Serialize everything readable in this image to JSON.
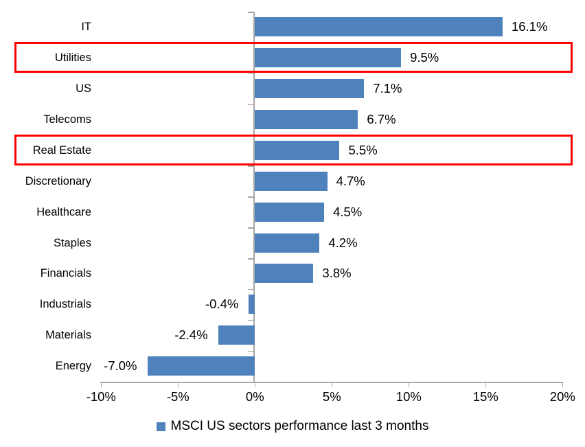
{
  "chart_data": {
    "type": "bar",
    "orientation": "horizontal",
    "categories": [
      "IT",
      "Utilities",
      "US",
      "Telecoms",
      "Real Estate",
      "Discretionary",
      "Healthcare",
      "Staples",
      "Financials",
      "Industrials",
      "Materials",
      "Energy"
    ],
    "values": [
      16.1,
      9.5,
      7.1,
      6.7,
      5.5,
      4.7,
      4.5,
      4.2,
      3.8,
      -0.4,
      -2.4,
      -7.0
    ],
    "value_labels": [
      "16.1%",
      "9.5%",
      "7.1%",
      "6.7%",
      "5.5%",
      "4.7%",
      "4.5%",
      "4.2%",
      "3.8%",
      "-0.4%",
      "-2.4%",
      "-7.0%"
    ],
    "xlim": [
      -10,
      20
    ],
    "x_ticks": [
      -10,
      -5,
      0,
      5,
      10,
      15,
      20
    ],
    "x_tick_labels": [
      "-10%",
      "-5%",
      "0%",
      "5%",
      "10%",
      "15%",
      "20%"
    ],
    "grid": false,
    "bar_color": "#4F81BD",
    "axis_color": "#A6A6A6",
    "highlight_color": "#FF0000",
    "highlighted_categories": [
      "Utilities",
      "Real Estate"
    ],
    "legend_position": "bottom-center",
    "legend": {
      "label": "MSCI US sectors performance last 3 months",
      "swatch_color": "#4F81BD"
    }
  }
}
